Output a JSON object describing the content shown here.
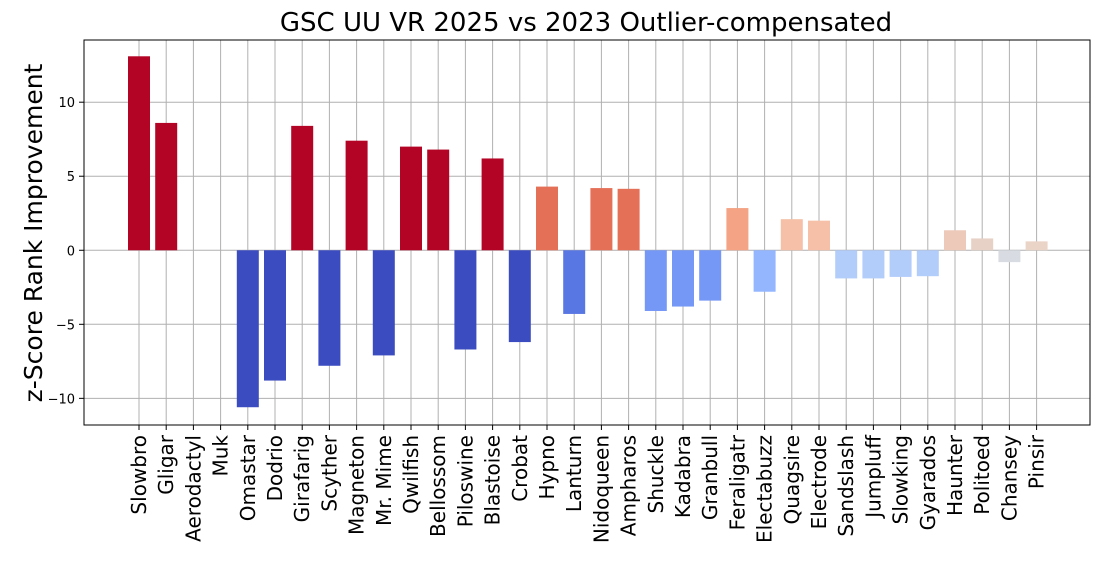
{
  "chart_data": {
    "type": "bar",
    "title": "GSC UU VR 2025 vs 2023 Outlier-compensated",
    "xlabel": "",
    "ylabel": "z-Score Rank Improvement",
    "ylim": [
      -11.8,
      14.2
    ],
    "yticks": [
      -10,
      -5,
      0,
      5,
      10
    ],
    "grid": true,
    "categories": [
      "Slowbro",
      "Gligar",
      "Aerodactyl",
      "Muk",
      "Omastar",
      "Dodrio",
      "Girafarig",
      "Scyther",
      "Magneton",
      "Mr. Mime",
      "Qwilfish",
      "Bellossom",
      "Piloswine",
      "Blastoise",
      "Crobat",
      "Hypno",
      "Lanturn",
      "Nidoqueen",
      "Ampharos",
      "Shuckle",
      "Kadabra",
      "Granbull",
      "Feraligatr",
      "Electabuzz",
      "Quagsire",
      "Electrode",
      "Sandslash",
      "Jumpluff",
      "Slowking",
      "Gyarados",
      "Haunter",
      "Politoed",
      "Chansey",
      "Pinsir"
    ],
    "values": [
      13.1,
      8.6,
      0,
      0,
      -10.6,
      -8.8,
      8.4,
      -7.8,
      7.4,
      -7.1,
      7.0,
      6.8,
      -6.7,
      6.2,
      -6.2,
      4.3,
      -4.3,
      4.2,
      4.15,
      -4.1,
      -3.8,
      -3.4,
      2.85,
      -2.8,
      2.1,
      2.0,
      -1.9,
      -1.9,
      -1.8,
      -1.75,
      1.35,
      0.8,
      -0.8,
      0.6
    ],
    "colors": [
      "#b40426",
      "#b40426",
      "#b40426",
      "#b40426",
      "#3b4cc0",
      "#3b4cc0",
      "#b40426",
      "#3b4cc0",
      "#b40426",
      "#3b4cc0",
      "#b40426",
      "#b40426",
      "#3b4cc0",
      "#b40426",
      "#3b4cc0",
      "#e57058",
      "#5977e3",
      "#e57058",
      "#e57058",
      "#7597f6",
      "#7597f6",
      "#7597f6",
      "#f4a384",
      "#94b6ff",
      "#f5c0a7",
      "#f5c0a7",
      "#b3cdfb",
      "#b3cdfb",
      "#b3cdfb",
      "#b3cdfb",
      "#ecc9b9",
      "#e7d0c5",
      "#d8dce2",
      "#ead4c8"
    ]
  }
}
